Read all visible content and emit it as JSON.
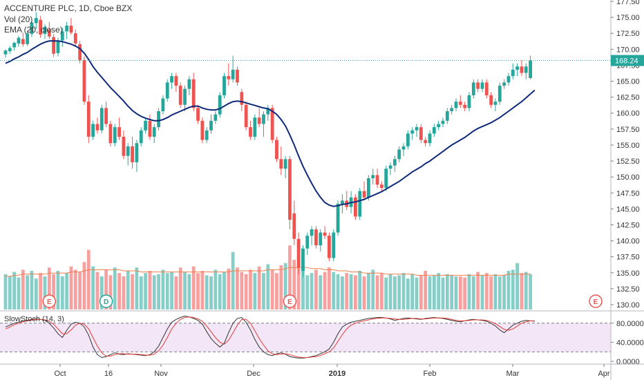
{
  "header": {
    "symbol_line": "ACCENTURE PLC, 1D, Cboe BZX",
    "volume_line": "Vol (20)",
    "ema_line": "EMA (20, close)",
    "stoch_line": "SlowStoch (14, 3)"
  },
  "chart_data": {
    "type": "candlestick",
    "x_axis_labels": [
      "Oct",
      "16",
      "Nov",
      "Dec",
      "2019",
      "Feb",
      "Mar",
      "Apr"
    ],
    "price_axis": {
      "min": 130,
      "max": 177.5,
      "ticks": [
        "177.50",
        "175.00",
        "172.50",
        "170.00",
        "167.50",
        "165.00",
        "162.50",
        "160.00",
        "157.50",
        "155.00",
        "152.50",
        "150.00",
        "147.50",
        "145.00",
        "142.50",
        "140.00",
        "137.50",
        "135.00",
        "132.50",
        "130.00"
      ]
    },
    "last_price": "168.24",
    "candles": [
      [
        169.2,
        170.0,
        168.7,
        169.8
      ],
      [
        169.7,
        170.5,
        169.3,
        170.2
      ],
      [
        170.3,
        171.2,
        169.8,
        171.0
      ],
      [
        170.9,
        172.1,
        170.4,
        171.8
      ],
      [
        171.6,
        172.6,
        170.4,
        170.8
      ],
      [
        170.8,
        172.9,
        170.5,
        172.5
      ],
      [
        172.4,
        174.8,
        171.9,
        174.2
      ],
      [
        174.1,
        175.8,
        173.2,
        174.9
      ],
      [
        174.6,
        175.2,
        171.8,
        172.3
      ],
      [
        172.4,
        173.9,
        171.6,
        173.5
      ],
      [
        173.1,
        174.3,
        171.6,
        172.0
      ],
      [
        171.9,
        172.4,
        168.8,
        169.3
      ],
      [
        169.4,
        171.8,
        168.9,
        171.3
      ],
      [
        171.4,
        173.4,
        170.4,
        172.8
      ],
      [
        172.8,
        174.3,
        171.6,
        173.7
      ],
      [
        173.7,
        174.9,
        172.3,
        172.6
      ],
      [
        172.5,
        173.1,
        170.4,
        170.9
      ],
      [
        170.8,
        171.3,
        167.8,
        168.3
      ],
      [
        168.3,
        168.9,
        161.3,
        161.8
      ],
      [
        161.8,
        162.8,
        155.3,
        156.3
      ],
      [
        156.3,
        158.8,
        155.8,
        158.3
      ],
      [
        158.3,
        159.3,
        156.8,
        157.3
      ],
      [
        157.3,
        161.3,
        156.8,
        160.8
      ],
      [
        160.8,
        161.8,
        157.8,
        158.3
      ],
      [
        158.3,
        158.8,
        154.8,
        155.3
      ],
      [
        155.3,
        158.3,
        154.8,
        157.8
      ],
      [
        157.8,
        159.3,
        155.8,
        156.3
      ],
      [
        156.3,
        157.3,
        152.8,
        153.3
      ],
      [
        153.3,
        155.3,
        151.8,
        154.8
      ],
      [
        154.8,
        156.3,
        151.3,
        152.3
      ],
      [
        152.3,
        155.8,
        150.8,
        155.3
      ],
      [
        155.3,
        157.8,
        154.8,
        157.3
      ],
      [
        157.3,
        159.3,
        156.8,
        158.8
      ],
      [
        158.8,
        159.8,
        155.8,
        156.3
      ],
      [
        156.3,
        158.3,
        155.3,
        157.8
      ],
      [
        157.8,
        160.8,
        157.3,
        160.3
      ],
      [
        160.3,
        162.8,
        159.8,
        162.3
      ],
      [
        162.3,
        165.3,
        161.8,
        164.8
      ],
      [
        164.8,
        166.3,
        163.8,
        165.8
      ],
      [
        165.8,
        166.3,
        163.3,
        164.3
      ],
      [
        164.3,
        164.8,
        160.8,
        161.3
      ],
      [
        161.3,
        164.3,
        160.3,
        163.8
      ],
      [
        163.8,
        165.8,
        162.8,
        165.3
      ],
      [
        165.3,
        166.3,
        160.3,
        160.8
      ],
      [
        160.8,
        161.3,
        158.3,
        158.8
      ],
      [
        158.8,
        159.3,
        155.3,
        155.8
      ],
      [
        155.8,
        157.8,
        155.3,
        157.3
      ],
      [
        157.3,
        159.8,
        156.8,
        158.8
      ],
      [
        158.8,
        160.3,
        158.3,
        159.8
      ],
      [
        159.8,
        163.3,
        159.3,
        162.8
      ],
      [
        162.8,
        166.3,
        162.3,
        165.8
      ],
      [
        165.8,
        167.8,
        164.3,
        165.3
      ],
      [
        165.3,
        169.0,
        164.8,
        166.8
      ],
      [
        166.8,
        167.3,
        164.3,
        164.8
      ],
      [
        163.3,
        163.8,
        160.3,
        161.3
      ],
      [
        161.3,
        161.8,
        157.3,
        157.8
      ],
      [
        157.8,
        158.8,
        155.8,
        156.3
      ],
      [
        156.3,
        159.8,
        155.8,
        159.3
      ],
      [
        159.3,
        160.8,
        157.8,
        158.3
      ],
      [
        158.3,
        160.3,
        156.3,
        159.8
      ],
      [
        159.8,
        161.3,
        158.8,
        160.8
      ],
      [
        160.8,
        161.3,
        155.3,
        155.8
      ],
      [
        155.8,
        156.3,
        152.3,
        152.8
      ],
      [
        152.8,
        154.8,
        150.3,
        151.3
      ],
      [
        151.3,
        153.3,
        149.8,
        152.8
      ],
      [
        152.8,
        153.3,
        141.8,
        143.3
      ],
      [
        144.3,
        146.3,
        139.3,
        140.3
      ],
      [
        140.3,
        141.3,
        134.8,
        135.8
      ],
      [
        135.3,
        139.3,
        134.3,
        138.8
      ],
      [
        138.8,
        141.3,
        137.8,
        140.8
      ],
      [
        140.8,
        142.3,
        139.3,
        141.8
      ],
      [
        141.8,
        142.3,
        138.8,
        139.3
      ],
      [
        139.3,
        141.8,
        138.3,
        141.3
      ],
      [
        141.3,
        142.3,
        140.3,
        140.8
      ],
      [
        140.8,
        141.3,
        136.8,
        137.3
      ],
      [
        137.3,
        141.8,
        136.8,
        141.3
      ],
      [
        141.3,
        146.3,
        140.8,
        145.8
      ],
      [
        145.8,
        147.3,
        144.3,
        146.3
      ],
      [
        146.3,
        147.8,
        144.8,
        145.3
      ],
      [
        145.3,
        147.8,
        144.3,
        146.8
      ],
      [
        146.8,
        147.3,
        143.3,
        143.8
      ],
      [
        143.8,
        148.3,
        143.3,
        147.8
      ],
      [
        147.8,
        149.3,
        146.3,
        146.8
      ],
      [
        146.8,
        150.3,
        146.3,
        149.8
      ],
      [
        149.8,
        151.3,
        148.8,
        150.3
      ],
      [
        150.3,
        151.3,
        148.3,
        148.8
      ],
      [
        148.8,
        149.3,
        147.8,
        148.3
      ],
      [
        148.3,
        151.8,
        147.8,
        151.3
      ],
      [
        151.3,
        152.3,
        150.3,
        151.8
      ],
      [
        151.8,
        153.3,
        150.8,
        152.8
      ],
      [
        152.8,
        154.8,
        152.3,
        154.3
      ],
      [
        154.3,
        155.3,
        153.3,
        154.8
      ],
      [
        154.8,
        157.3,
        154.3,
        156.8
      ],
      [
        156.8,
        157.8,
        155.8,
        157.3
      ],
      [
        157.3,
        158.3,
        156.3,
        157.8
      ],
      [
        157.8,
        158.3,
        155.3,
        155.8
      ],
      [
        155.8,
        156.3,
        154.8,
        155.3
      ],
      [
        155.3,
        157.3,
        154.8,
        156.8
      ],
      [
        156.8,
        158.3,
        156.3,
        157.8
      ],
      [
        157.8,
        158.8,
        157.3,
        158.3
      ],
      [
        158.3,
        159.3,
        157.8,
        158.8
      ],
      [
        158.8,
        160.8,
        158.3,
        160.3
      ],
      [
        160.3,
        161.3,
        159.8,
        160.8
      ],
      [
        160.8,
        162.3,
        160.3,
        161.8
      ],
      [
        161.8,
        162.8,
        160.8,
        161.3
      ],
      [
        161.3,
        161.8,
        160.3,
        160.8
      ],
      [
        160.8,
        163.3,
        160.3,
        162.8
      ],
      [
        162.8,
        165.3,
        162.3,
        164.8
      ],
      [
        164.8,
        165.3,
        163.3,
        163.8
      ],
      [
        163.8,
        165.3,
        163.3,
        164.8
      ],
      [
        164.8,
        165.3,
        162.3,
        162.8
      ],
      [
        162.8,
        163.3,
        160.8,
        161.3
      ],
      [
        161.3,
        162.3,
        160.3,
        161.8
      ],
      [
        161.8,
        164.8,
        161.3,
        164.3
      ],
      [
        164.3,
        165.3,
        163.8,
        164.8
      ],
      [
        164.8,
        166.3,
        164.3,
        165.8
      ],
      [
        165.8,
        167.8,
        165.3,
        166.8
      ],
      [
        166.8,
        167.8,
        165.8,
        167.3
      ],
      [
        167.3,
        168.3,
        165.8,
        166.3
      ],
      [
        166.3,
        167.8,
        165.3,
        167.3
      ],
      [
        165.5,
        169.0,
        165.3,
        168.24
      ]
    ],
    "ema": [
      167.8,
      168.1,
      168.5,
      168.8,
      169.2,
      169.5,
      170.0,
      170.4,
      170.8,
      171.1,
      171.3,
      171.3,
      171.3,
      171.2,
      171.0,
      170.8,
      170.5,
      170.1,
      169.4,
      168.4,
      167.3,
      166.4,
      165.6,
      164.8,
      164.0,
      163.3,
      162.6,
      161.9,
      161.1,
      160.4,
      159.9,
      159.5,
      159.2,
      159.0,
      158.8,
      158.8,
      159.0,
      159.3,
      159.7,
      160.0,
      160.3,
      160.6,
      160.9,
      161.1,
      161.1,
      160.8,
      160.6,
      160.5,
      160.5,
      160.7,
      161.1,
      161.5,
      161.8,
      161.9,
      161.8,
      161.6,
      161.4,
      161.2,
      161.0,
      160.8,
      160.7,
      160.3,
      159.8,
      159.0,
      158.0,
      156.6,
      155.0,
      153.3,
      151.7,
      150.3,
      149.0,
      147.8,
      146.8,
      146.0,
      145.6,
      145.4,
      145.5,
      145.7,
      145.8,
      146.0,
      146.1,
      146.3,
      146.5,
      146.8,
      147.1,
      147.4,
      147.7,
      148.1,
      148.5,
      148.9,
      149.3,
      149.8,
      150.3,
      150.8,
      151.2,
      151.6,
      152.1,
      152.5,
      153.0,
      153.5,
      154.0,
      154.5,
      155.0,
      155.4,
      155.8,
      156.2,
      156.7,
      157.2,
      157.6,
      157.9,
      158.2,
      158.5,
      158.9,
      159.3,
      159.8,
      160.3,
      160.8,
      161.3,
      161.8,
      162.4,
      163.0,
      163.6
    ],
    "volumes": [
      3.2,
      3.0,
      3.4,
      2.9,
      3.6,
      3.1,
      3.5,
      2.8,
      3.3,
      3.0,
      3.8,
      3.2,
      3.5,
      3.0,
      3.3,
      3.9,
      3.6,
      3.4,
      4.3,
      5.4,
      3.9,
      3.4,
      3.0,
      3.6,
      3.1,
      3.8,
      3.3,
      3.0,
      3.5,
      3.2,
      3.8,
      3.0,
      3.3,
      3.5,
      3.1,
      3.2,
      3.6,
      3.3,
      3.4,
      3.0,
      3.8,
      3.4,
      3.2,
      3.9,
      3.3,
      3.5,
      3.1,
      3.0,
      3.6,
      3.2,
      3.4,
      3.7,
      5.2,
      3.8,
      3.4,
      3.2,
      3.6,
      3.3,
      3.9,
      3.3,
      4.1,
      3.6,
      3.3,
      4.0,
      4.2,
      5.8,
      4.5,
      3.9,
      3.6,
      3.1,
      3.3,
      3.6,
      3.1,
      3.4,
      3.8,
      3.4,
      3.2,
      3.0,
      3.3,
      3.2,
      3.1,
      3.5,
      3.0,
      3.3,
      3.6,
      3.1,
      3.3,
      2.9,
      3.2,
      3.0,
      3.1,
      3.3,
      2.8,
      3.2,
      2.9,
      3.1,
      3.5,
      3.0,
      3.1,
      3.3,
      2.9,
      3.2,
      3.1,
      3.0,
      3.0,
      2.9,
      3.2,
      3.0,
      3.4,
      3.1,
      3.3,
      3.0,
      3.2,
      3.0,
      3.1,
      3.5,
      3.6,
      4.2,
      3.3,
      3.4,
      3.2
    ],
    "vol_ma": [
      3.0,
      3.0,
      3.1,
      3.1,
      3.2,
      3.2,
      3.2,
      3.2,
      3.2,
      3.2,
      3.3,
      3.3,
      3.3,
      3.3,
      3.3,
      3.4,
      3.4,
      3.4,
      3.5,
      3.6,
      3.6,
      3.6,
      3.6,
      3.6,
      3.6,
      3.6,
      3.6,
      3.5,
      3.5,
      3.5,
      3.5,
      3.4,
      3.4,
      3.4,
      3.4,
      3.4,
      3.4,
      3.4,
      3.4,
      3.4,
      3.4,
      3.4,
      3.4,
      3.4,
      3.4,
      3.4,
      3.4,
      3.4,
      3.4,
      3.4,
      3.4,
      3.4,
      3.5,
      3.5,
      3.5,
      3.5,
      3.5,
      3.5,
      3.5,
      3.5,
      3.6,
      3.6,
      3.6,
      3.6,
      3.7,
      3.8,
      3.8,
      3.8,
      3.8,
      3.8,
      3.7,
      3.7,
      3.7,
      3.6,
      3.6,
      3.6,
      3.5,
      3.5,
      3.5,
      3.4,
      3.4,
      3.4,
      3.3,
      3.3,
      3.3,
      3.3,
      3.3,
      3.2,
      3.2,
      3.2,
      3.2,
      3.2,
      3.2,
      3.2,
      3.1,
      3.1,
      3.1,
      3.1,
      3.1,
      3.1,
      3.1,
      3.1,
      3.1,
      3.1,
      3.1,
      3.1,
      3.1,
      3.1,
      3.1,
      3.1,
      3.1,
      3.1,
      3.1,
      3.1,
      3.1,
      3.2,
      3.2,
      3.2,
      3.2,
      3.2,
      3.2
    ],
    "events": [
      {
        "label": "E",
        "color": "#ef5350",
        "index": 10
      },
      {
        "label": "D",
        "color": "#26a69a",
        "index": 23
      },
      {
        "label": "E",
        "color": "#ef5350",
        "index": 65
      },
      {
        "label": "E",
        "color": "#ef5350",
        "index": "future"
      }
    ],
    "stoch_axis": {
      "ticks": [
        "80.0000",
        "40.0000",
        "0.0000"
      ],
      "levels": [
        80,
        20
      ]
    },
    "stoch_k": [
      72,
      76,
      80,
      82,
      85,
      86,
      88,
      89,
      88,
      86,
      80,
      70,
      58,
      50,
      65,
      78,
      82,
      80,
      72,
      55,
      30,
      14,
      8,
      10,
      14,
      18,
      15,
      14,
      16,
      15,
      14,
      13,
      12,
      14,
      20,
      32,
      50,
      68,
      82,
      88,
      92,
      95,
      93,
      90,
      86,
      78,
      62,
      48,
      38,
      30,
      38,
      60,
      80,
      90,
      92,
      82,
      66,
      46,
      30,
      20,
      14,
      12,
      16,
      18,
      15,
      10,
      8,
      7,
      7,
      8,
      10,
      12,
      16,
      20,
      26,
      40,
      58,
      72,
      78,
      82,
      84,
      86,
      88,
      90,
      91,
      92,
      92,
      91,
      89,
      86,
      88,
      90,
      91,
      90,
      89,
      88,
      90,
      91,
      92,
      91,
      90,
      88,
      86,
      84,
      83,
      85,
      87,
      88,
      87,
      86,
      84,
      80,
      74,
      66,
      60,
      68,
      76,
      80,
      84,
      86,
      85,
      84
    ],
    "stoch_d": [
      68,
      72,
      77,
      80,
      83,
      85,
      87,
      88,
      88,
      87,
      84,
      78,
      68,
      58,
      58,
      66,
      76,
      80,
      78,
      68,
      50,
      32,
      18,
      11,
      11,
      14,
      16,
      16,
      15,
      15,
      15,
      14,
      13,
      13,
      15,
      22,
      34,
      50,
      68,
      80,
      88,
      92,
      93,
      92,
      89,
      84,
      74,
      62,
      50,
      40,
      36,
      44,
      60,
      76,
      88,
      88,
      80,
      64,
      48,
      34,
      22,
      16,
      14,
      15,
      16,
      14,
      11,
      9,
      8,
      8,
      9,
      10,
      12,
      16,
      20,
      28,
      42,
      56,
      68,
      76,
      80,
      83,
      85,
      87,
      89,
      90,
      91,
      91,
      90,
      89,
      88,
      88,
      89,
      90,
      90,
      89,
      89,
      90,
      91,
      91,
      91,
      90,
      88,
      86,
      85,
      85,
      86,
      87,
      87,
      87,
      86,
      83,
      79,
      73,
      67,
      65,
      68,
      74,
      80,
      83,
      85,
      85
    ],
    "colors": {
      "up": "#26a69a",
      "down": "#ef5350",
      "ema": "#0d2a7a",
      "vol_ma": "#ef7f4a",
      "stoch_k": "#333333",
      "stoch_d": "#e53935",
      "price_line": "#26a69a",
      "stoch_band": "#f3e6f7"
    }
  }
}
